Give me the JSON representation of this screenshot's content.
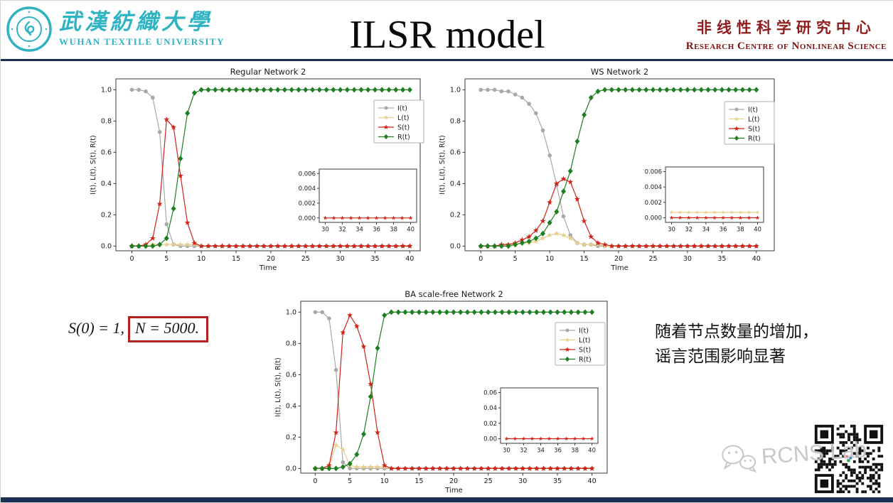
{
  "header": {
    "university_cn": "武漢紡織大學",
    "university_en": "WUHAN TEXTILE UNIVERSITY",
    "title": "ILSR model",
    "centre_cn": "非线性科学研究中心",
    "centre_en": "Research Centre of Nonlinear Science"
  },
  "annotations": {
    "formula_prefix": "S(0) = 1,",
    "formula_boxed": "N = 5000.",
    "note_line1": "随着节点数量的增加，",
    "note_line2": "谣言范围影响显著",
    "watermark": "RCNS Lab"
  },
  "colors": {
    "I": "#a8a8a8",
    "L": "#e7cf8d",
    "S": "#cf2318",
    "R": "#1e7e22",
    "accent_navy": "#1b2f55",
    "accent_teal": "#2fb3c2",
    "accent_darkred": "#8f1d1d",
    "box_red": "#b42121"
  },
  "chart_data": [
    {
      "type": "line",
      "title": "Regular Network 2",
      "xlabel": "Time",
      "ylabel": "I(t), L(t), S(t), R(t)",
      "xlim": [
        -2.3,
        41.5
      ],
      "ylim": [
        -0.03,
        1.07
      ],
      "xticks": [
        0,
        5,
        10,
        15,
        20,
        25,
        30,
        35,
        40
      ],
      "yticks": [
        0.0,
        0.2,
        0.4,
        0.6,
        0.8,
        1.0
      ],
      "legend_position": "upper right",
      "grid": false,
      "series": [
        {
          "name": "I(t)",
          "color_key": "I",
          "marker": "circle",
          "values": [
            1,
            1,
            0.99,
            0.95,
            0.73,
            0.14,
            0.01,
            0,
            0,
            0,
            0,
            0,
            0,
            0,
            0,
            0,
            0,
            0,
            0,
            0,
            0,
            0,
            0,
            0,
            0,
            0,
            0,
            0,
            0,
            0,
            0,
            0,
            0,
            0,
            0,
            0,
            0,
            0,
            0,
            0,
            0
          ]
        },
        {
          "name": "L(t)",
          "color_key": "L",
          "marker": "star",
          "values": [
            0,
            0,
            0,
            0.01,
            0.01,
            0.01,
            0.01,
            0.01,
            0.01,
            0.01,
            0,
            0,
            0,
            0,
            0,
            0,
            0,
            0,
            0,
            0,
            0,
            0,
            0,
            0,
            0,
            0,
            0,
            0,
            0,
            0,
            0,
            0,
            0,
            0,
            0,
            0,
            0,
            0,
            0,
            0,
            0
          ]
        },
        {
          "name": "S(t)",
          "color_key": "S",
          "marker": "star",
          "values": [
            0,
            0,
            0.01,
            0.05,
            0.27,
            0.81,
            0.76,
            0.45,
            0.15,
            0.02,
            0,
            0,
            0,
            0,
            0,
            0,
            0,
            0,
            0,
            0,
            0,
            0,
            0,
            0,
            0,
            0,
            0,
            0,
            0,
            0,
            0,
            0,
            0,
            0,
            0,
            0,
            0,
            0,
            0,
            0,
            0
          ]
        },
        {
          "name": "R(t)",
          "color_key": "R",
          "marker": "diamond",
          "values": [
            0,
            0,
            0,
            0,
            0.01,
            0.05,
            0.24,
            0.56,
            0.85,
            0.98,
            1,
            1,
            1,
            1,
            1,
            1,
            1,
            1,
            1,
            1,
            1,
            1,
            1,
            1,
            1,
            1,
            1,
            1,
            1,
            1,
            1,
            1,
            1,
            1,
            1,
            1,
            1,
            1,
            1,
            1,
            1
          ]
        }
      ],
      "inset": {
        "xlim": [
          29.3,
          40.7
        ],
        "ylim": [
          -0.0006,
          0.0066
        ],
        "xticks": [
          30,
          32,
          34,
          36,
          38,
          40
        ],
        "yticks": [
          0,
          0.002,
          0.004,
          0.006
        ],
        "ytick_labels": [
          "0.000",
          "0.002",
          "0.004",
          "0.006"
        ],
        "series": [
          {
            "name": "S(t)",
            "color_key": "S",
            "marker": "star",
            "value": 0
          }
        ]
      }
    },
    {
      "type": "line",
      "title": "WS Network 2",
      "xlabel": "Time",
      "ylabel": "I(t), L(t), S(t), R(t)",
      "xlim": [
        -2.3,
        42.6
      ],
      "ylim": [
        -0.03,
        1.07
      ],
      "xticks": [
        0,
        5,
        10,
        15,
        20,
        25,
        30,
        35,
        40
      ],
      "yticks": [
        0.0,
        0.2,
        0.4,
        0.6,
        0.8,
        1.0
      ],
      "legend_position": "upper right",
      "grid": false,
      "series": [
        {
          "name": "I(t)",
          "color_key": "I",
          "marker": "circle",
          "values": [
            1,
            1,
            1,
            0.99,
            0.99,
            0.97,
            0.95,
            0.91,
            0.85,
            0.74,
            0.58,
            0.39,
            0.19,
            0.07,
            0.02,
            0.01,
            0.01,
            0,
            0,
            0,
            0,
            0,
            0,
            0,
            0,
            0,
            0,
            0,
            0,
            0,
            0,
            0,
            0,
            0,
            0,
            0,
            0,
            0,
            0,
            0,
            0
          ]
        },
        {
          "name": "L(t)",
          "color_key": "L",
          "marker": "star",
          "values": [
            0,
            0,
            0,
            0,
            0.01,
            0.01,
            0.02,
            0.02,
            0.03,
            0.05,
            0.07,
            0.08,
            0.07,
            0.05,
            0.02,
            0.01,
            0.01,
            0.01,
            0,
            0,
            0,
            0,
            0,
            0,
            0,
            0,
            0,
            0,
            0,
            0,
            0,
            0,
            0,
            0,
            0,
            0,
            0,
            0,
            0,
            0,
            0
          ]
        },
        {
          "name": "S(t)",
          "color_key": "S",
          "marker": "star",
          "values": [
            0,
            0,
            0,
            0.01,
            0.01,
            0.02,
            0.04,
            0.06,
            0.1,
            0.16,
            0.28,
            0.4,
            0.43,
            0.41,
            0.3,
            0.16,
            0.06,
            0.02,
            0.01,
            0,
            0,
            0,
            0,
            0,
            0,
            0,
            0,
            0,
            0,
            0,
            0,
            0,
            0,
            0,
            0,
            0,
            0,
            0,
            0,
            0,
            0
          ]
        },
        {
          "name": "R(t)",
          "color_key": "R",
          "marker": "diamond",
          "values": [
            0,
            0,
            0,
            0,
            0,
            0.01,
            0.02,
            0.03,
            0.05,
            0.08,
            0.15,
            0.22,
            0.35,
            0.48,
            0.67,
            0.84,
            0.95,
            0.99,
            1,
            1,
            1,
            1,
            1,
            1,
            1,
            1,
            1,
            1,
            1,
            1,
            1,
            1,
            1,
            1,
            1,
            1,
            1,
            1,
            1,
            1,
            1
          ]
        }
      ],
      "inset": {
        "xlim": [
          29.3,
          40.7
        ],
        "ylim": [
          -0.0006,
          0.0066
        ],
        "xticks": [
          30,
          32,
          34,
          36,
          38,
          40
        ],
        "yticks": [
          0,
          0.002,
          0.004,
          0.006
        ],
        "ytick_labels": [
          "0.000",
          "0.002",
          "0.004",
          "0.006"
        ],
        "series": [
          {
            "name": "L(t)",
            "color_key": "L",
            "marker": "star",
            "value": 0.0007
          },
          {
            "name": "S(t)",
            "color_key": "S",
            "marker": "star",
            "value": 0
          }
        ]
      }
    },
    {
      "type": "line",
      "title": "BA scale-free Network 2",
      "xlabel": "Time",
      "ylabel": "I(t), L(t), S(t), R(t)",
      "xlim": [
        -2.1,
        42.2
      ],
      "ylim": [
        -0.03,
        1.07
      ],
      "xticks": [
        0,
        5,
        10,
        15,
        20,
        25,
        30,
        35,
        40
      ],
      "yticks": [
        0.0,
        0.2,
        0.4,
        0.6,
        0.8,
        1.0
      ],
      "legend_position": "upper right",
      "grid": false,
      "series": [
        {
          "name": "I(t)",
          "color_key": "I",
          "marker": "circle",
          "values": [
            1,
            1,
            0.96,
            0.63,
            0.04,
            0,
            0,
            0,
            0,
            0,
            0,
            0,
            0,
            0,
            0,
            0,
            0,
            0,
            0,
            0,
            0,
            0,
            0,
            0,
            0,
            0,
            0,
            0,
            0,
            0,
            0,
            0,
            0,
            0,
            0,
            0,
            0,
            0,
            0,
            0,
            0
          ]
        },
        {
          "name": "L(t)",
          "color_key": "L",
          "marker": "star",
          "values": [
            0,
            0,
            0.01,
            0.15,
            0.12,
            0.02,
            0.01,
            0.01,
            0.01,
            0.01,
            0.01,
            0,
            0,
            0,
            0,
            0,
            0,
            0,
            0,
            0,
            0,
            0,
            0,
            0,
            0,
            0,
            0,
            0,
            0,
            0,
            0,
            0,
            0,
            0,
            0,
            0,
            0,
            0,
            0,
            0,
            0
          ]
        },
        {
          "name": "S(t)",
          "color_key": "S",
          "marker": "star",
          "values": [
            0,
            0,
            0.02,
            0.23,
            0.87,
            0.98,
            0.91,
            0.78,
            0.54,
            0.23,
            0.02,
            0,
            0,
            0,
            0,
            0,
            0,
            0,
            0,
            0,
            0,
            0,
            0,
            0,
            0,
            0,
            0,
            0,
            0,
            0,
            0,
            0,
            0,
            0,
            0,
            0,
            0,
            0,
            0,
            0,
            0
          ]
        },
        {
          "name": "R(t)",
          "color_key": "R",
          "marker": "diamond",
          "values": [
            0,
            0,
            0,
            0,
            0.01,
            0.03,
            0.09,
            0.22,
            0.46,
            0.77,
            0.98,
            1,
            1,
            1,
            1,
            1,
            1,
            1,
            1,
            1,
            1,
            1,
            1,
            1,
            1,
            1,
            1,
            1,
            1,
            1,
            1,
            1,
            1,
            1,
            1,
            1,
            1,
            1,
            1,
            1,
            1
          ]
        }
      ],
      "inset": {
        "xlim": [
          29.3,
          40.7
        ],
        "ylim": [
          -0.006,
          0.066
        ],
        "xticks": [
          30,
          32,
          34,
          36,
          38,
          40
        ],
        "yticks": [
          0,
          0.02,
          0.04,
          0.06
        ],
        "ytick_labels": [
          "0.00",
          "0.02",
          "0.04",
          "0.06"
        ],
        "series": [
          {
            "name": "S(t)",
            "color_key": "S",
            "marker": "star",
            "value": 0
          }
        ]
      }
    }
  ]
}
